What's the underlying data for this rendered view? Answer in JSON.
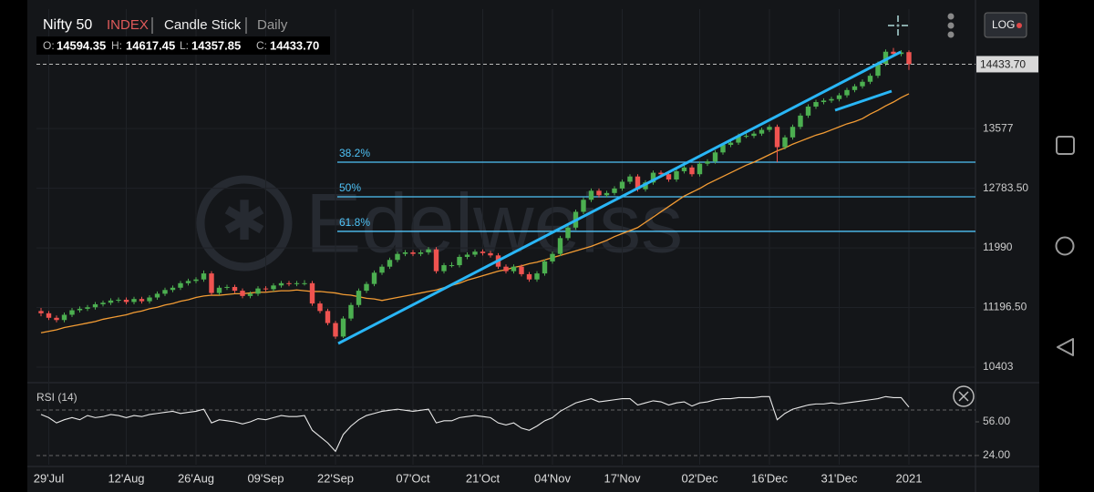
{
  "header": {
    "symbol": "Nifty 50",
    "kind": "INDEX",
    "style": "Candle Stick",
    "interval": "Daily",
    "ohlc": [
      {
        "key": "O:",
        "value": "14594.35"
      },
      {
        "key": "H:",
        "value": "14617.45"
      },
      {
        "key": "L:",
        "value": "14357.85"
      },
      {
        "key": "C:",
        "value": "14433.70"
      }
    ],
    "scale_button": "LOG"
  },
  "chart_data": {
    "type": "candlestick",
    "watermark": "Edelweiss",
    "up_color": "#4caf50",
    "down_color": "#ef5350",
    "grid": true,
    "categories": [
      null,
      "29'Jul",
      null,
      null,
      null,
      null,
      null,
      null,
      null,
      null,
      null,
      "12'Aug",
      null,
      null,
      null,
      null,
      null,
      null,
      null,
      null,
      "26'Aug",
      null,
      null,
      null,
      null,
      null,
      null,
      null,
      null,
      "09'Sep",
      null,
      null,
      null,
      null,
      null,
      null,
      null,
      null,
      "22'Sep",
      null,
      null,
      null,
      null,
      null,
      null,
      null,
      null,
      null,
      "07'Oct",
      null,
      null,
      null,
      null,
      null,
      null,
      null,
      null,
      "21'Oct",
      null,
      null,
      null,
      null,
      null,
      null,
      null,
      null,
      "04'Nov",
      null,
      null,
      null,
      null,
      null,
      null,
      null,
      null,
      "17'Nov",
      null,
      null,
      null,
      null,
      null,
      null,
      null,
      null,
      null,
      "02'Dec",
      null,
      null,
      null,
      null,
      null,
      null,
      null,
      null,
      "16'Dec",
      null,
      null,
      null,
      null,
      null,
      null,
      null,
      null,
      "31'Dec",
      null,
      null,
      null,
      null,
      null,
      null,
      null,
      null,
      "2021"
    ],
    "ohlc": [
      [
        11150,
        11190,
        11080,
        11120
      ],
      [
        11120,
        11150,
        11030,
        11060
      ],
      [
        11060,
        11090,
        11000,
        11030
      ],
      [
        11030,
        11130,
        11000,
        11100
      ],
      [
        11100,
        11190,
        11070,
        11160
      ],
      [
        11160,
        11210,
        11130,
        11180
      ],
      [
        11180,
        11230,
        11150,
        11200
      ],
      [
        11200,
        11270,
        11170,
        11240
      ],
      [
        11240,
        11290,
        11210,
        11260
      ],
      [
        11260,
        11320,
        11230,
        11290
      ],
      [
        11290,
        11330,
        11260,
        11300
      ],
      [
        11300,
        11330,
        11240,
        11270
      ],
      [
        11270,
        11340,
        11240,
        11310
      ],
      [
        11310,
        11340,
        11250,
        11280
      ],
      [
        11280,
        11360,
        11250,
        11330
      ],
      [
        11330,
        11410,
        11300,
        11380
      ],
      [
        11380,
        11460,
        11350,
        11430
      ],
      [
        11430,
        11490,
        11400,
        11460
      ],
      [
        11460,
        11550,
        11430,
        11520
      ],
      [
        11520,
        11580,
        11490,
        11550
      ],
      [
        11550,
        11600,
        11520,
        11570
      ],
      [
        11570,
        11690,
        11540,
        11650
      ],
      [
        11650,
        11680,
        11360,
        11390
      ],
      [
        11390,
        11490,
        11360,
        11460
      ],
      [
        11460,
        11500,
        11430,
        11470
      ],
      [
        11470,
        11500,
        11390,
        11420
      ],
      [
        11420,
        11450,
        11320,
        11350
      ],
      [
        11350,
        11410,
        11320,
        11380
      ],
      [
        11380,
        11480,
        11350,
        11450
      ],
      [
        11450,
        11480,
        11410,
        11440
      ],
      [
        11440,
        11520,
        11410,
        11490
      ],
      [
        11490,
        11550,
        11460,
        11520
      ],
      [
        11520,
        11550,
        11480,
        11510
      ],
      [
        11510,
        11550,
        11480,
        11520
      ],
      [
        11520,
        11560,
        11490,
        11520
      ],
      [
        11520,
        11550,
        11220,
        11250
      ],
      [
        11250,
        11280,
        11120,
        11150
      ],
      [
        11150,
        11180,
        10960,
        10990
      ],
      [
        10990,
        11020,
        10780,
        10810
      ],
      [
        10810,
        11080,
        10790,
        11050
      ],
      [
        11050,
        11260,
        11020,
        11230
      ],
      [
        11230,
        11450,
        11200,
        11420
      ],
      [
        11420,
        11540,
        11390,
        11510
      ],
      [
        11510,
        11690,
        11480,
        11660
      ],
      [
        11660,
        11770,
        11630,
        11740
      ],
      [
        11740,
        11860,
        11710,
        11830
      ],
      [
        11830,
        11940,
        11800,
        11910
      ],
      [
        11910,
        11960,
        11880,
        11930
      ],
      [
        11930,
        11960,
        11880,
        11910
      ],
      [
        11910,
        11960,
        11880,
        11930
      ],
      [
        11930,
        12000,
        11900,
        11970
      ],
      [
        11970,
        12000,
        11650,
        11680
      ],
      [
        11680,
        11790,
        11650,
        11760
      ],
      [
        11760,
        11800,
        11730,
        11760
      ],
      [
        11760,
        11900,
        11730,
        11870
      ],
      [
        11870,
        11930,
        11840,
        11900
      ],
      [
        11900,
        11970,
        11870,
        11940
      ],
      [
        11940,
        11970,
        11890,
        11920
      ],
      [
        11920,
        11950,
        11860,
        11890
      ],
      [
        11890,
        11920,
        11710,
        11740
      ],
      [
        11740,
        11770,
        11650,
        11680
      ],
      [
        11680,
        11770,
        11650,
        11740
      ],
      [
        11740,
        11770,
        11610,
        11640
      ],
      [
        11640,
        11670,
        11540,
        11570
      ],
      [
        11570,
        11680,
        11540,
        11650
      ],
      [
        11650,
        11840,
        11620,
        11810
      ],
      [
        11810,
        11940,
        11780,
        11910
      ],
      [
        11910,
        12150,
        11880,
        12120
      ],
      [
        12120,
        12290,
        12090,
        12260
      ],
      [
        12260,
        12500,
        12230,
        12470
      ],
      [
        12470,
        12660,
        12440,
        12630
      ],
      [
        12630,
        12780,
        12600,
        12750
      ],
      [
        12750,
        12780,
        12660,
        12690
      ],
      [
        12690,
        12750,
        12660,
        12720
      ],
      [
        12720,
        12810,
        12690,
        12780
      ],
      [
        12780,
        12900,
        12750,
        12870
      ],
      [
        12870,
        12970,
        12840,
        12940
      ],
      [
        12940,
        12970,
        12740,
        12770
      ],
      [
        12770,
        12890,
        12740,
        12860
      ],
      [
        12860,
        13020,
        12830,
        12990
      ],
      [
        12990,
        13020,
        12940,
        12970
      ],
      [
        12970,
        13000,
        12870,
        12900
      ],
      [
        12900,
        13040,
        12870,
        13010
      ],
      [
        13010,
        13090,
        12980,
        13060
      ],
      [
        13060,
        13090,
        12940,
        12970
      ],
      [
        12970,
        13140,
        12940,
        13110
      ],
      [
        13110,
        13170,
        13080,
        13140
      ],
      [
        13140,
        13290,
        13110,
        13260
      ],
      [
        13260,
        13390,
        13230,
        13360
      ],
      [
        13360,
        13420,
        13330,
        13390
      ],
      [
        13390,
        13510,
        13360,
        13480
      ],
      [
        13480,
        13530,
        13450,
        13480
      ],
      [
        13480,
        13540,
        13450,
        13510
      ],
      [
        13510,
        13590,
        13480,
        13560
      ],
      [
        13560,
        13630,
        13530,
        13600
      ],
      [
        13600,
        13630,
        13130,
        13330
      ],
      [
        13330,
        13490,
        13300,
        13460
      ],
      [
        13460,
        13630,
        13430,
        13600
      ],
      [
        13600,
        13780,
        13570,
        13750
      ],
      [
        13750,
        13900,
        13720,
        13870
      ],
      [
        13870,
        13960,
        13840,
        13930
      ],
      [
        13930,
        13980,
        13900,
        13950
      ],
      [
        13950,
        14000,
        13920,
        13970
      ],
      [
        13970,
        14050,
        13940,
        14020
      ],
      [
        14020,
        14120,
        13990,
        14090
      ],
      [
        14090,
        14170,
        14060,
        14140
      ],
      [
        14140,
        14230,
        14110,
        14200
      ],
      [
        14200,
        14310,
        14170,
        14280
      ],
      [
        14280,
        14470,
        14250,
        14440
      ],
      [
        14440,
        14630,
        14410,
        14600
      ],
      [
        14600,
        14650,
        14540,
        14570
      ],
      [
        14570,
        14620,
        14540,
        14590
      ],
      [
        14594.35,
        14617.45,
        14357.85,
        14433.7
      ]
    ],
    "ma": {
      "color": "#f39c34",
      "values": [
        10860,
        10880,
        10900,
        10930,
        10950,
        10970,
        10990,
        11010,
        11040,
        11060,
        11080,
        11100,
        11130,
        11150,
        11180,
        11200,
        11230,
        11250,
        11280,
        11300,
        11330,
        11350,
        11360,
        11360,
        11370,
        11380,
        11380,
        11390,
        11400,
        11400,
        11410,
        11420,
        11420,
        11430,
        11420,
        11410,
        11410,
        11400,
        11390,
        11370,
        11360,
        11340,
        11320,
        11310,
        11290,
        11310,
        11330,
        11350,
        11370,
        11390,
        11410,
        11430,
        11460,
        11490,
        11520,
        11560,
        11590,
        11620,
        11650,
        11680,
        11700,
        11730,
        11750,
        11780,
        11800,
        11830,
        11860,
        11890,
        11920,
        11950,
        11980,
        12010,
        12050,
        12090,
        12140,
        12180,
        12220,
        12260,
        12330,
        12400,
        12470,
        12540,
        12610,
        12680,
        12730,
        12780,
        12840,
        12890,
        12940,
        12990,
        13040,
        13090,
        13130,
        13180,
        13230,
        13280,
        13320,
        13370,
        13410,
        13450,
        13490,
        13520,
        13560,
        13600,
        13640,
        13670,
        13710,
        13770,
        13820,
        13880,
        13930,
        13990,
        14040
      ]
    },
    "ylim": [
      10318,
      14803
    ],
    "yticks": [
      10403,
      {
        "value": 11196.5,
        "label": "11196.50"
      },
      11990,
      {
        "value": 12783.5,
        "label": "12783.50"
      },
      13577
    ],
    "last_price": {
      "value": 14433.7,
      "label": "14433.70"
    },
    "fib_levels": [
      {
        "label": "38.2%",
        "value": 13130
      },
      {
        "label": "50%",
        "value": 12670
      },
      {
        "label": "61.8%",
        "value": 12210
      }
    ],
    "rsi": {
      "title": "RSI (14)",
      "color": "#e8e8e8",
      "ylim": [
        15.3,
        88.9
      ],
      "yticks": [
        {
          "value": 56,
          "label": "56.00"
        },
        {
          "value": 24,
          "label": "24.00"
        }
      ],
      "values": [
        63,
        60,
        55,
        58,
        60,
        58,
        62,
        60,
        61,
        63,
        62,
        60,
        62,
        61,
        63,
        64,
        65,
        66,
        64,
        65,
        66,
        68,
        55,
        58,
        57,
        56,
        54,
        56,
        59,
        58,
        60,
        62,
        61,
        61,
        62,
        48,
        42,
        36,
        28,
        44,
        52,
        58,
        62,
        64,
        66,
        67,
        68,
        67,
        66,
        67,
        68,
        55,
        57,
        57,
        60,
        61,
        62,
        61,
        60,
        55,
        53,
        55,
        50,
        48,
        52,
        57,
        60,
        66,
        70,
        74,
        76,
        78,
        75,
        76,
        77,
        78,
        78,
        72,
        74,
        76,
        75,
        72,
        74,
        75,
        71,
        74,
        75,
        77,
        78,
        78,
        79,
        79,
        79,
        80,
        80,
        58,
        64,
        68,
        70,
        72,
        73,
        73,
        74,
        73,
        74,
        75,
        76,
        77,
        78,
        80,
        79,
        79,
        70
      ]
    }
  }
}
